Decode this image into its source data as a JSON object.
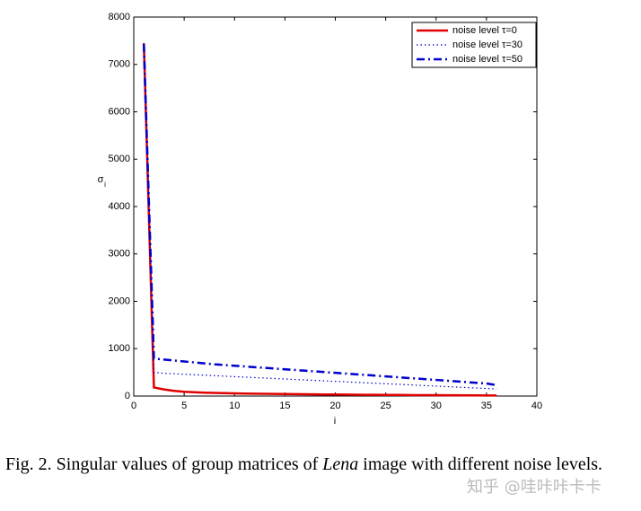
{
  "chart_data": {
    "type": "line",
    "ylabel": "σ",
    "ylabel_sub": "i",
    "xlabel": "i",
    "x": [
      1,
      2,
      3,
      4,
      5,
      6,
      7,
      8,
      9,
      10,
      11,
      12,
      13,
      14,
      15,
      16,
      17,
      18,
      19,
      20,
      21,
      22,
      23,
      24,
      25,
      26,
      27,
      28,
      29,
      30,
      31,
      32,
      33,
      34,
      35,
      36
    ],
    "series": [
      {
        "name": "noise level τ=0",
        "color": "#e00000",
        "dash": "solid",
        "values": [
          7450,
          180,
          140,
          110,
          90,
          80,
          72,
          66,
          61,
          57,
          53,
          50,
          47,
          44,
          42,
          40,
          38,
          36,
          34,
          32,
          30,
          29,
          27,
          26,
          24,
          23,
          22,
          20,
          19,
          18,
          17,
          16,
          15,
          14,
          13,
          12
        ]
      },
      {
        "name": "noise level τ=30",
        "color": "#0000cc",
        "dash": "dotted",
        "values": [
          7420,
          500,
          480,
          470,
          460,
          450,
          440,
          430,
          420,
          410,
          400,
          390,
          380,
          370,
          360,
          350,
          340,
          330,
          320,
          310,
          300,
          290,
          280,
          270,
          260,
          250,
          240,
          230,
          220,
          210,
          200,
          190,
          180,
          170,
          160,
          150
        ]
      },
      {
        "name": "noise level τ=50",
        "color": "#0000cc",
        "dash": "dashdot",
        "values": [
          7430,
          790,
          770,
          750,
          730,
          710,
          690,
          670,
          655,
          640,
          625,
          610,
          595,
          580,
          565,
          550,
          535,
          520,
          505,
          490,
          475,
          460,
          445,
          430,
          415,
          400,
          385,
          370,
          355,
          340,
          325,
          310,
          295,
          280,
          265,
          230
        ]
      }
    ],
    "xlim": [
      0,
      40
    ],
    "xticks": [
      0,
      5,
      10,
      15,
      20,
      25,
      30,
      35,
      40
    ],
    "ylim": [
      0,
      8000
    ],
    "yticks": [
      0,
      1000,
      2000,
      3000,
      4000,
      5000,
      6000,
      7000,
      8000
    ],
    "legend": "upper right"
  },
  "caption": {
    "prefix": "Fig. 2.  Singular values of group matrices of ",
    "italic": "Lena",
    "suffix": " image with different noise levels."
  },
  "watermark": "知乎 @哇咔咔卡卡"
}
